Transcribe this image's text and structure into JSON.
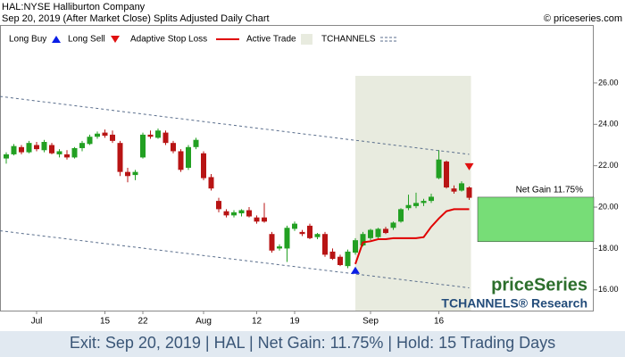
{
  "chart_data": {
    "type": "candlestick",
    "title": "HAL:NYSE Halliburton Company",
    "subtitle": "Sep 20, 2019 (After Market Close)  Splits Adjusted Daily Chart",
    "source": "© priceseries.com",
    "categories": [
      null,
      null,
      null,
      null,
      "Jul",
      null,
      null,
      null,
      null,
      null,
      null,
      null,
      null,
      "15",
      null,
      null,
      null,
      null,
      "22",
      null,
      null,
      null,
      null,
      null,
      null,
      null,
      "Aug",
      null,
      null,
      null,
      null,
      null,
      null,
      "12",
      null,
      null,
      null,
      null,
      "19",
      null,
      null,
      null,
      null,
      null,
      null,
      null,
      null,
      null,
      "Sep",
      null,
      null,
      null,
      null,
      null,
      null,
      null,
      null,
      "16",
      null,
      null,
      null,
      null
    ],
    "open": [
      22.35,
      22.55,
      22.9,
      22.65,
      23.0,
      22.75,
      23.0,
      22.55,
      22.55,
      22.4,
      22.85,
      23.05,
      23.4,
      23.6,
      23.5,
      23.1,
      21.7,
      21.55,
      22.4,
      23.5,
      23.35,
      23.6,
      23.1,
      22.7,
      21.9,
      22.9,
      22.6,
      21.45,
      20.3,
      19.8,
      19.6,
      19.7,
      19.85,
      19.5,
      19.5,
      18.7,
      18.0,
      18.0,
      18.95,
      18.8,
      19.1,
      18.55,
      18.7,
      17.85,
      17.6,
      17.15,
      17.8,
      18.15,
      18.5,
      18.55,
      18.95,
      19.0,
      19.3,
      19.95,
      20.05,
      20.2,
      20.3,
      21.4,
      22.2,
      20.9,
      20.8,
      20.95
    ],
    "high": [
      22.65,
      23.05,
      23.0,
      23.2,
      23.15,
      23.25,
      23.1,
      22.8,
      22.75,
      22.9,
      23.2,
      23.5,
      23.65,
      23.75,
      23.7,
      23.2,
      21.9,
      21.8,
      23.6,
      23.7,
      23.8,
      23.7,
      23.2,
      22.8,
      23.0,
      23.35,
      22.7,
      21.6,
      20.45,
      19.9,
      19.85,
      19.9,
      20.0,
      19.6,
      20.2,
      18.8,
      18.2,
      19.1,
      19.3,
      18.9,
      19.2,
      18.75,
      18.8,
      18.0,
      17.7,
      17.95,
      18.5,
      18.8,
      18.95,
      19.0,
      19.05,
      19.3,
      19.95,
      20.6,
      20.7,
      20.4,
      20.65,
      22.75,
      22.25,
      21.05,
      21.25,
      21.0
    ],
    "low": [
      22.1,
      22.5,
      22.55,
      22.6,
      22.7,
      22.65,
      22.55,
      22.4,
      22.3,
      22.35,
      22.7,
      23.0,
      23.3,
      23.35,
      23.1,
      21.5,
      21.2,
      21.3,
      22.35,
      23.3,
      23.3,
      23.0,
      22.6,
      21.7,
      21.8,
      22.8,
      21.3,
      20.8,
      19.75,
      19.5,
      19.5,
      19.55,
      19.5,
      19.2,
      19.25,
      17.8,
      17.9,
      17.35,
      18.85,
      18.6,
      18.45,
      18.45,
      17.6,
      17.45,
      17.15,
      17.05,
      17.7,
      18.1,
      18.4,
      18.5,
      18.7,
      18.9,
      19.25,
      19.85,
      19.95,
      20.05,
      20.2,
      21.35,
      20.9,
      20.65,
      20.75,
      20.35
    ],
    "close": [
      22.55,
      22.95,
      22.65,
      23.1,
      22.8,
      23.15,
      22.6,
      22.7,
      22.4,
      22.85,
      23.1,
      23.4,
      23.55,
      23.45,
      23.2,
      21.7,
      21.5,
      21.7,
      23.5,
      23.4,
      23.7,
      23.1,
      22.7,
      21.8,
      22.9,
      23.25,
      21.4,
      20.9,
      19.9,
      19.6,
      19.75,
      19.85,
      19.55,
      19.3,
      19.3,
      17.9,
      18.1,
      19.0,
      19.2,
      18.7,
      18.5,
      18.7,
      17.7,
      17.5,
      17.2,
      17.85,
      18.4,
      18.7,
      18.9,
      18.95,
      18.75,
      19.25,
      19.9,
      20.1,
      20.2,
      20.3,
      20.5,
      22.3,
      20.95,
      20.75,
      21.15,
      20.45
    ],
    "up_color": "#22a022",
    "down_color": "#b81414",
    "ylim": [
      15,
      28.8
    ],
    "yticks": [
      {
        "value": 16,
        "label": "16.00"
      },
      {
        "value": 18,
        "label": "18.00"
      },
      {
        "value": 20,
        "label": "20.00"
      },
      {
        "value": 22,
        "label": "22.00"
      },
      {
        "value": 24,
        "label": "24.00"
      },
      {
        "value": 26,
        "label": "26.00"
      }
    ],
    "stop_loss": {
      "name": "Adaptive Stop Loss",
      "color": "#e00000",
      "values": [
        null,
        null,
        null,
        null,
        null,
        null,
        null,
        null,
        null,
        null,
        null,
        null,
        null,
        null,
        null,
        null,
        null,
        null,
        null,
        null,
        null,
        null,
        null,
        null,
        null,
        null,
        null,
        null,
        null,
        null,
        null,
        null,
        null,
        null,
        null,
        null,
        null,
        null,
        null,
        null,
        null,
        null,
        null,
        null,
        null,
        null,
        17.25,
        18.3,
        18.35,
        18.45,
        18.45,
        18.5,
        18.5,
        18.5,
        18.5,
        18.55,
        19.05,
        19.45,
        19.8,
        19.9,
        19.9,
        19.9
      ]
    },
    "active_trade": {
      "name": "Active Trade",
      "color": "#e8ebdf"
    },
    "channels": {
      "name": "TCHANNELS",
      "color": "#5a6e8c",
      "upper": [
        25.31,
        22.55
      ],
      "lower": [
        18.82,
        16.1
      ]
    },
    "long_buy": {
      "name": "Long Buy",
      "color": "#0a1ee6",
      "index": 46,
      "price": 16.95
    },
    "long_sell": {
      "name": "Long Sell",
      "color": "#e01010",
      "index": 61,
      "price": 21.95
    },
    "net_gain": {
      "label": "Net Gain 11.75%",
      "entry": 18.33,
      "exit": 20.48,
      "color": "#77dd77"
    },
    "watermark": "priceSeries",
    "research": "TCHANNELS® Research",
    "footer": "Exit: Sep 20, 2019 | HAL | Net Gain: 11.75% | Hold: 15 Trading Days"
  }
}
